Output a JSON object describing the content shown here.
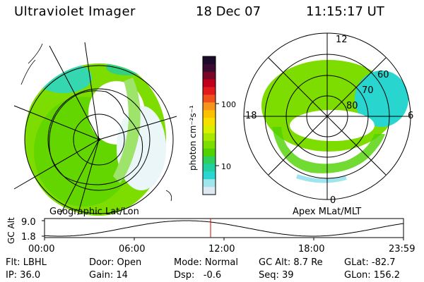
{
  "header": {
    "title": "Ultraviolet Imager",
    "date": "18 Dec 07",
    "time": "11:15:17 UT"
  },
  "left_map": {
    "caption": "Geographic Lat/Lon"
  },
  "right_map": {
    "caption": "Apex MLat/MLT",
    "mlt_labels": [
      "12",
      "18",
      "6",
      "0"
    ],
    "lat_labels": [
      "60",
      "70",
      "80"
    ]
  },
  "colorbar": {
    "unit_label": "photon cm⁻²s⁻¹",
    "tick_labels": [
      "100",
      "10"
    ],
    "colors": [
      "#1b0a2a",
      "#3a0a30",
      "#7a0626",
      "#c0001a",
      "#e31a1c",
      "#f0501c",
      "#f7941d",
      "#fdc000",
      "#f7e000",
      "#d8f000",
      "#a8e800",
      "#7ddc00",
      "#4fd200",
      "#2ecf5a",
      "#22cfa0",
      "#28d6cf",
      "#9fe5ee",
      "#dde8f0"
    ]
  },
  "timeline": {
    "y_axis_label": "GC Alt",
    "y_ticks": [
      "9.0",
      "1.8"
    ],
    "x_ticks": [
      "00:00",
      "06:00",
      "12:00",
      "18:00",
      "23:59"
    ],
    "marker_time": "11:15:17"
  },
  "info": {
    "flt": "Flt: LBHL",
    "ip": "IP: 36.0",
    "door": "Door: Open",
    "gain": "Gain: 14",
    "mode": "Mode: Normal",
    "dsp": "Dsp:   -0.6",
    "gcalt": "GC Alt: 8.7 Re",
    "seq": "Seq: 39",
    "glat": "GLat: -82.7",
    "glon": "GLon: 156.2"
  }
}
